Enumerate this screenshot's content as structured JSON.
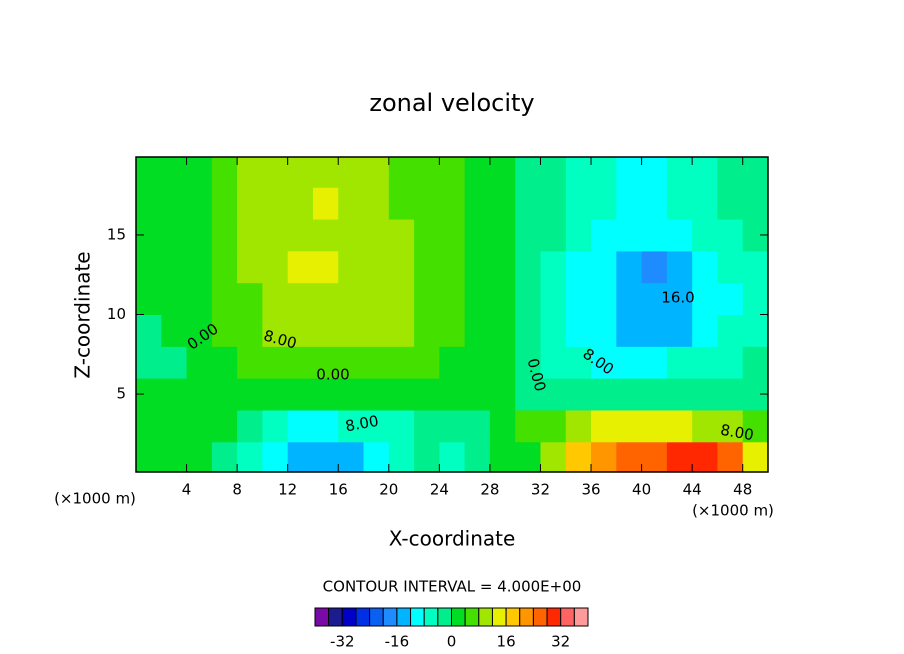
{
  "chart_data": {
    "type": "contour",
    "title": "zonal velocity",
    "x_label": "X-coordinate",
    "y_label": "Z-coordinate",
    "y_unit": "(×1000 m)",
    "x_unit": "(×1000 m)",
    "subtitle": "CONTOUR INTERVAL = 4.000E+00",
    "contour_labels": [
      "0.00",
      "8.00",
      "0.00",
      "8.00",
      "16.0",
      "8.00",
      "0.00",
      "8.00"
    ],
    "xlim": [
      0,
      50
    ],
    "ylim": [
      0.1,
      19.9
    ],
    "xticks": [
      4,
      8,
      12,
      16,
      20,
      24,
      28,
      32,
      36,
      40,
      44,
      48
    ],
    "yticks": [
      5,
      10,
      15
    ],
    "x": [
      1,
      3,
      5,
      7,
      9,
      11,
      13,
      15,
      17,
      19,
      21,
      23,
      25,
      27,
      29,
      31,
      33,
      35,
      37,
      39,
      41,
      43,
      45,
      47,
      49
    ],
    "y": [
      1,
      3,
      5,
      7,
      9,
      11,
      13,
      15,
      17,
      19
    ],
    "z": [
      [
        2,
        2,
        1,
        -2,
        -6,
        -10,
        -14,
        -16,
        -14,
        -10,
        -6,
        -4,
        -5,
        -3,
        0,
        3,
        10,
        18,
        22,
        26,
        26,
        28,
        30,
        24,
        14
      ],
      [
        3,
        3,
        2,
        0,
        -3,
        -7,
        -9,
        -9,
        -8,
        -8,
        -6,
        -4,
        -3,
        -1,
        2,
        4,
        6,
        10,
        12,
        12,
        12,
        12,
        11,
        9,
        7
      ],
      [
        3,
        2,
        3,
        3,
        2,
        1,
        1,
        0,
        0,
        1,
        1,
        1,
        2,
        1,
        0,
        -1,
        -3,
        -4,
        -4,
        -4,
        -4,
        -4,
        -4,
        -3,
        -3
      ],
      [
        -1,
        -1,
        0,
        2,
        4,
        5,
        5,
        5,
        5,
        6,
        6,
        4,
        3,
        2,
        1,
        -2,
        -5,
        -8,
        -9,
        -9,
        -9,
        -8,
        -7,
        -6,
        -4
      ],
      [
        -1,
        0,
        2,
        4,
        6,
        8,
        9,
        9,
        9,
        10,
        8,
        6,
        4,
        2,
        0,
        -3,
        -6,
        -10,
        -12,
        -14,
        -16,
        -14,
        -12,
        -8,
        -5
      ],
      [
        0,
        1,
        2,
        4,
        6,
        9,
        11,
        11,
        10,
        9,
        8,
        6,
        4,
        2,
        0,
        -3,
        -6,
        -10,
        -12,
        -16,
        -16,
        -14,
        -12,
        -9,
        -6
      ],
      [
        0,
        1,
        3,
        5,
        8,
        11,
        12,
        12,
        10,
        9,
        8,
        6,
        4,
        2,
        0,
        -2,
        -5,
        -9,
        -12,
        -15,
        -17,
        -16,
        -12,
        -8,
        -6
      ],
      [
        0,
        1,
        3,
        6,
        9,
        11,
        11,
        11,
        10,
        9,
        8,
        6,
        4,
        2,
        0,
        -2,
        -4,
        -7,
        -9,
        -10,
        -11,
        -10,
        -8,
        -6,
        -4
      ],
      [
        1,
        2,
        3,
        6,
        9,
        10,
        11,
        12,
        11,
        9,
        7,
        6,
        4,
        2,
        0,
        -2,
        -4,
        -6,
        -8,
        -9,
        -9,
        -8,
        -6,
        -4,
        -3
      ],
      [
        0,
        2,
        3,
        6,
        9,
        10,
        10,
        10,
        10,
        9,
        7,
        5,
        4,
        2,
        0,
        -2,
        -4,
        -5,
        -7,
        -9,
        -9,
        -7,
        -5,
        -4,
        -3
      ]
    ],
    "levels": [
      -40,
      -36,
      -32,
      -28,
      -24,
      -20,
      -16,
      -12,
      -8,
      -4,
      0,
      4,
      8,
      12,
      16,
      20,
      24,
      28,
      32,
      36,
      40
    ],
    "colors": [
      "#7a0aa8",
      "#1c1c90",
      "#0000c8",
      "#0030e6",
      "#0a60f0",
      "#1e8cff",
      "#00b4ff",
      "#00ffff",
      "#00ffc0",
      "#00ee8c",
      "#00dd22",
      "#44e000",
      "#a0e600",
      "#e6f000",
      "#ffc800",
      "#ff9600",
      "#ff6400",
      "#ff2800",
      "#ff6464",
      "#ff9a9a"
    ],
    "colorbar_ticks": [
      -32,
      -16,
      0,
      16,
      32
    ]
  }
}
